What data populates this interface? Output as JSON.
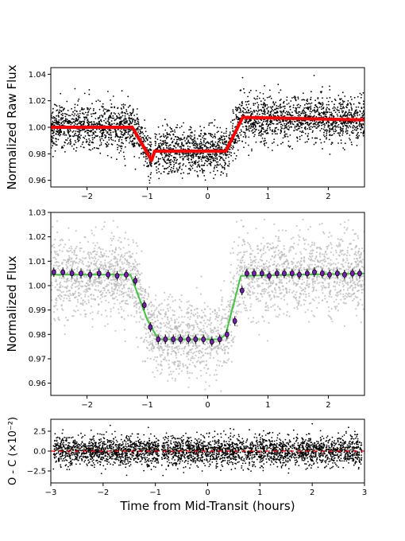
{
  "chart_data": [
    {
      "type": "scatter",
      "ylabel": "Normalized Raw Flux",
      "xlim": [
        -2.6,
        2.6
      ],
      "ylim": [
        0.955,
        1.045
      ],
      "xticks": [
        -2,
        -1,
        0,
        1,
        2
      ],
      "xtick_labels": [
        "−2",
        "−1",
        "0",
        "1",
        "2"
      ],
      "yticks": [
        0.96,
        0.98,
        1.0,
        1.02,
        1.04
      ],
      "ytick_labels": [
        "0.96",
        "0.98",
        "1.00",
        "1.02",
        "1.04"
      ],
      "colors": {
        "points": "#000000",
        "model": "#ff0000"
      },
      "model_points": [
        [
          -2.6,
          1.0
        ],
        [
          -1.25,
          1.0
        ],
        [
          -0.93,
          0.975
        ],
        [
          -0.88,
          0.982
        ],
        [
          0.3,
          0.982
        ],
        [
          0.58,
          1.0075
        ],
        [
          2.6,
          1.0055
        ]
      ],
      "scatter_sigma": 0.009
    },
    {
      "type": "scatter",
      "ylabel": "Normalized Flux",
      "xlim": [
        -2.6,
        2.6
      ],
      "ylim": [
        0.955,
        1.03
      ],
      "xticks": [
        -2,
        -1,
        0,
        1,
        2
      ],
      "xtick_labels": [
        "−2",
        "−1",
        "0",
        "1",
        "2"
      ],
      "yticks": [
        0.96,
        0.97,
        0.98,
        0.99,
        1.0,
        1.01,
        1.02,
        1.03
      ],
      "ytick_labels": [
        "0.96",
        "0.97",
        "0.98",
        "0.99",
        "1.00",
        "1.01",
        "1.02",
        "1.03"
      ],
      "colors": {
        "points": "#b5b5b5",
        "model": "#3ec63e",
        "binned_fill": "#7a1ab8",
        "binned_edge": "#000000"
      },
      "model_points": [
        [
          -2.6,
          1.0045
        ],
        [
          -1.28,
          1.0045
        ],
        [
          -1.0,
          0.986
        ],
        [
          -0.82,
          0.978
        ],
        [
          0.2,
          0.978
        ],
        [
          0.3,
          0.98
        ],
        [
          0.55,
          1.004
        ],
        [
          2.6,
          1.005
        ]
      ],
      "binned": {
        "x": [
          -2.55,
          -2.4,
          -2.25,
          -2.1,
          -1.95,
          -1.8,
          -1.65,
          -1.5,
          -1.35,
          -1.2,
          -1.05,
          -0.95,
          -0.82,
          -0.7,
          -0.57,
          -0.45,
          -0.32,
          -0.2,
          -0.07,
          0.07,
          0.2,
          0.32,
          0.45,
          0.57,
          0.65,
          0.77,
          0.9,
          1.02,
          1.15,
          1.27,
          1.4,
          1.52,
          1.65,
          1.77,
          1.9,
          2.02,
          2.15,
          2.27,
          2.4,
          2.52
        ],
        "y": [
          1.0055,
          1.0055,
          1.005,
          1.005,
          1.0045,
          1.005,
          1.0045,
          1.004,
          1.0045,
          1.002,
          0.992,
          0.983,
          0.978,
          0.978,
          0.978,
          0.978,
          0.978,
          0.978,
          0.978,
          0.977,
          0.978,
          0.98,
          0.9855,
          0.998,
          1.005,
          1.005,
          1.005,
          1.004,
          1.005,
          1.005,
          1.005,
          1.0045,
          1.005,
          1.0055,
          1.005,
          1.0045,
          1.005,
          1.0045,
          1.005,
          1.005
        ]
      },
      "scatter_sigma": 0.0085
    },
    {
      "type": "scatter",
      "ylabel": "O - C (×10⁻²)",
      "xlabel": "Time from Mid-Transit (hours)",
      "xlim": [
        -3,
        3
      ],
      "ylim": [
        -4.0,
        4.0
      ],
      "xticks": [
        -3,
        -2,
        -1,
        0,
        1,
        2,
        3
      ],
      "xtick_labels": [
        "−3",
        "−2",
        "−1",
        "0",
        "1",
        "2",
        "3"
      ],
      "yticks": [
        -2.5,
        0.0,
        2.5
      ],
      "ytick_labels": [
        "−2.5",
        "0.0",
        "2.5"
      ],
      "colors": {
        "points": "#000000",
        "zero_line": "#ff0000"
      },
      "zero_line": 0.0,
      "scatter_sigma": 0.9,
      "data_range": [
        -2.95,
        2.95
      ],
      "gap": [
        -0.93,
        -0.88
      ]
    }
  ]
}
